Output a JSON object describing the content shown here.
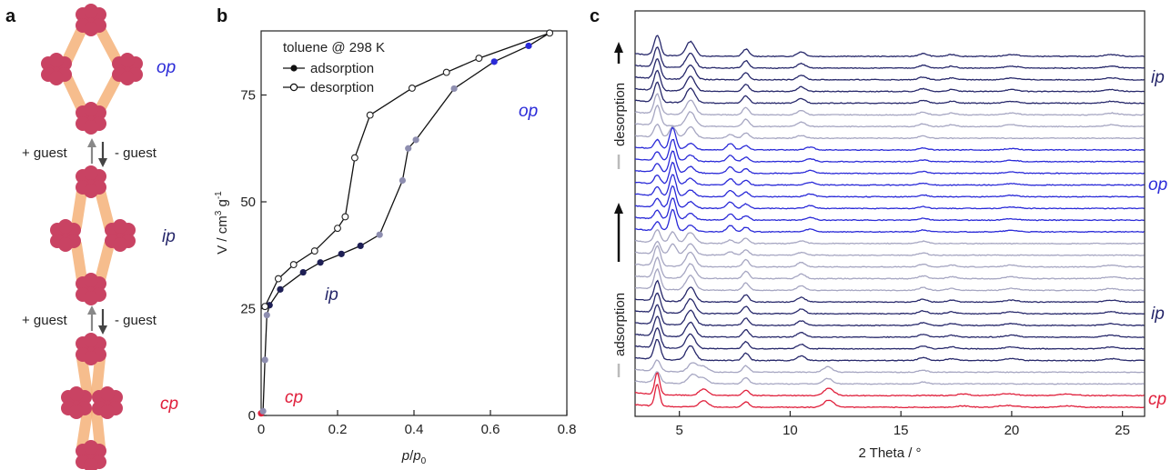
{
  "panels": {
    "a": "a",
    "b": "b",
    "c": "c"
  },
  "colors": {
    "op": "#2a2ad8",
    "ip": "#27286b",
    "cp": "#e0203c",
    "light": "#a6a6c2",
    "node": "#c94363",
    "linker": "#f5b27a",
    "dark_marker": "#1e1f55",
    "grey_marker": "#8e8eb0"
  },
  "scheme": {
    "labels": {
      "op": "op",
      "ip": "ip",
      "cp": "cp"
    },
    "transitions": [
      {
        "left": "+ guest",
        "right": "- guest"
      },
      {
        "left": "+ guest",
        "right": "- guest"
      }
    ]
  },
  "chart_data": [
    {
      "type": "scatter",
      "title": "",
      "xlabel": "p/p0",
      "ylabel": "V / cm3 g-1",
      "xlim": [
        0,
        0.8
      ],
      "ylim": [
        0,
        90
      ],
      "xticks": [
        "0",
        "0.2",
        "0.4",
        "0.6",
        "0.8"
      ],
      "yticks": [
        "0",
        "25",
        "50",
        "75"
      ],
      "legend": {
        "title": "toluene @ 298 K",
        "items": [
          "adsorption",
          "desorption"
        ],
        "placement": "top-left"
      },
      "annotations": {
        "op": "op",
        "ip": "ip",
        "cp": "cp"
      },
      "series": [
        {
          "name": "adsorption",
          "marker": "filled",
          "points": [
            [
              0.0,
              0.5,
              "cp"
            ],
            [
              0.005,
              1.0,
              "grey"
            ],
            [
              0.01,
              13.0,
              "grey"
            ],
            [
              0.015,
              23.5,
              "grey"
            ],
            [
              0.022,
              25.8,
              "dark"
            ],
            [
              0.05,
              29.5,
              "dark"
            ],
            [
              0.11,
              33.5,
              "dark"
            ],
            [
              0.155,
              35.8,
              "dark"
            ],
            [
              0.21,
              37.8,
              "dark"
            ],
            [
              0.26,
              39.7,
              "dark"
            ],
            [
              0.31,
              42.3,
              "grey"
            ],
            [
              0.37,
              55.0,
              "grey"
            ],
            [
              0.385,
              62.5,
              "grey"
            ],
            [
              0.405,
              64.5,
              "grey"
            ],
            [
              0.505,
              76.5,
              "grey"
            ],
            [
              0.61,
              82.8,
              "op"
            ],
            [
              0.7,
              86.5,
              "op"
            ],
            [
              0.755,
              89.5,
              "op"
            ]
          ]
        },
        {
          "name": "desorption",
          "marker": "open",
          "points": [
            [
              0.755,
              89.5
            ],
            [
              0.57,
              83.6
            ],
            [
              0.485,
              80.3
            ],
            [
              0.395,
              76.6
            ],
            [
              0.285,
              70.3
            ],
            [
              0.245,
              60.3
            ],
            [
              0.22,
              46.5
            ],
            [
              0.2,
              43.8
            ],
            [
              0.14,
              38.5
            ],
            [
              0.085,
              35.3
            ],
            [
              0.045,
              32.0
            ],
            [
              0.01,
              25.5
            ]
          ]
        }
      ]
    },
    {
      "type": "line",
      "title": "",
      "xlabel": "2 Theta / °",
      "ylabel": "",
      "xlim": [
        3,
        26
      ],
      "xticks": [
        "5",
        "10",
        "15",
        "20",
        "25"
      ],
      "side_labels": [
        "ip",
        "op",
        "ip",
        "cp"
      ],
      "arrow_labels": [
        "desorption",
        "adsorption"
      ],
      "patterns": [
        {
          "phase": "ip",
          "color": "dark"
        },
        {
          "phase": "ip",
          "color": "dark"
        },
        {
          "phase": "ip",
          "color": "dark"
        },
        {
          "phase": "ip",
          "color": "dark"
        },
        {
          "phase": "ip",
          "color": "dark"
        },
        {
          "phase": "ip",
          "color": "light"
        },
        {
          "phase": "ip",
          "color": "light"
        },
        {
          "phase": "mix",
          "color": "light"
        },
        {
          "phase": "op",
          "color": "op"
        },
        {
          "phase": "op",
          "color": "op"
        },
        {
          "phase": "op",
          "color": "op"
        },
        {
          "phase": "op",
          "color": "op"
        },
        {
          "phase": "op",
          "color": "op"
        },
        {
          "phase": "op",
          "color": "op"
        },
        {
          "phase": "op",
          "color": "op"
        },
        {
          "phase": "op",
          "color": "op"
        },
        {
          "phase": "mix",
          "color": "light"
        },
        {
          "phase": "mix",
          "color": "light"
        },
        {
          "phase": "ip",
          "color": "light"
        },
        {
          "phase": "ip",
          "color": "light"
        },
        {
          "phase": "ip",
          "color": "light"
        },
        {
          "phase": "ip",
          "color": "dark"
        },
        {
          "phase": "ip",
          "color": "dark"
        },
        {
          "phase": "ip",
          "color": "dark"
        },
        {
          "phase": "ip",
          "color": "dark"
        },
        {
          "phase": "ip",
          "color": "dark"
        },
        {
          "phase": "ip",
          "color": "dark"
        },
        {
          "phase": "mixcp",
          "color": "light"
        },
        {
          "phase": "mixcp",
          "color": "light"
        },
        {
          "phase": "cp",
          "color": "cp"
        },
        {
          "phase": "cp",
          "color": "cp"
        }
      ]
    }
  ]
}
